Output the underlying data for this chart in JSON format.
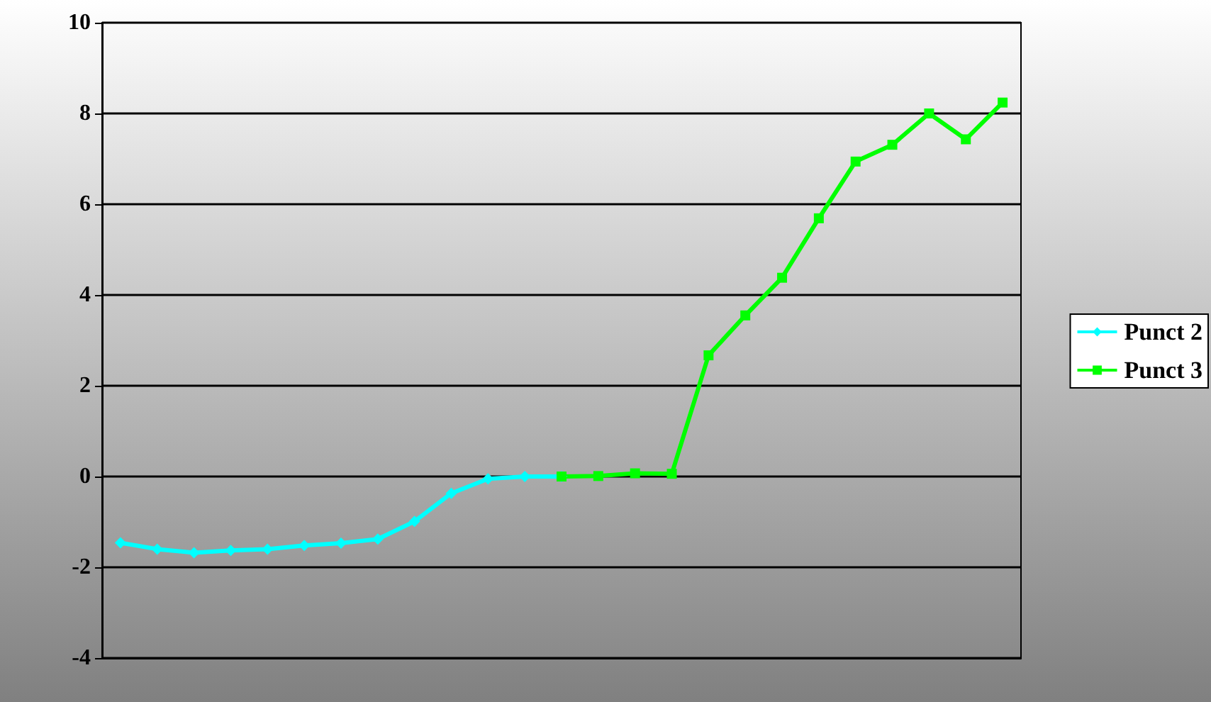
{
  "chart_data": {
    "type": "line",
    "categories": [
      null,
      null,
      null,
      null,
      null,
      null,
      null,
      null,
      null,
      null,
      null,
      null,
      null,
      null,
      null,
      null,
      null,
      null,
      null,
      null,
      null,
      null,
      null,
      null,
      null
    ],
    "series": [
      {
        "name": "Punct 2",
        "color": "#00ffff",
        "marker": "diamond",
        "values": [
          -1.46,
          -1.6,
          -1.68,
          -1.63,
          -1.6,
          -1.52,
          -1.47,
          -1.38,
          -0.99,
          -0.37,
          -0.05,
          0,
          0,
          null,
          null,
          null,
          null,
          null,
          null,
          null,
          null,
          null,
          null,
          null,
          null
        ]
      },
      {
        "name": "Punct 3",
        "color": "#00ff00",
        "marker": "square",
        "values": [
          null,
          null,
          null,
          null,
          null,
          null,
          null,
          null,
          null,
          null,
          null,
          null,
          0,
          0.01,
          0.07,
          0.06,
          2.67,
          3.55,
          4.38,
          5.69,
          6.94,
          7.31,
          8.0,
          7.43,
          8.24
        ]
      }
    ],
    "ylim": [
      -4,
      10
    ],
    "yticks": [
      -4,
      -2,
      0,
      2,
      4,
      6,
      8,
      10
    ],
    "grid": "y",
    "legend": "right",
    "tick_labels": "y"
  }
}
